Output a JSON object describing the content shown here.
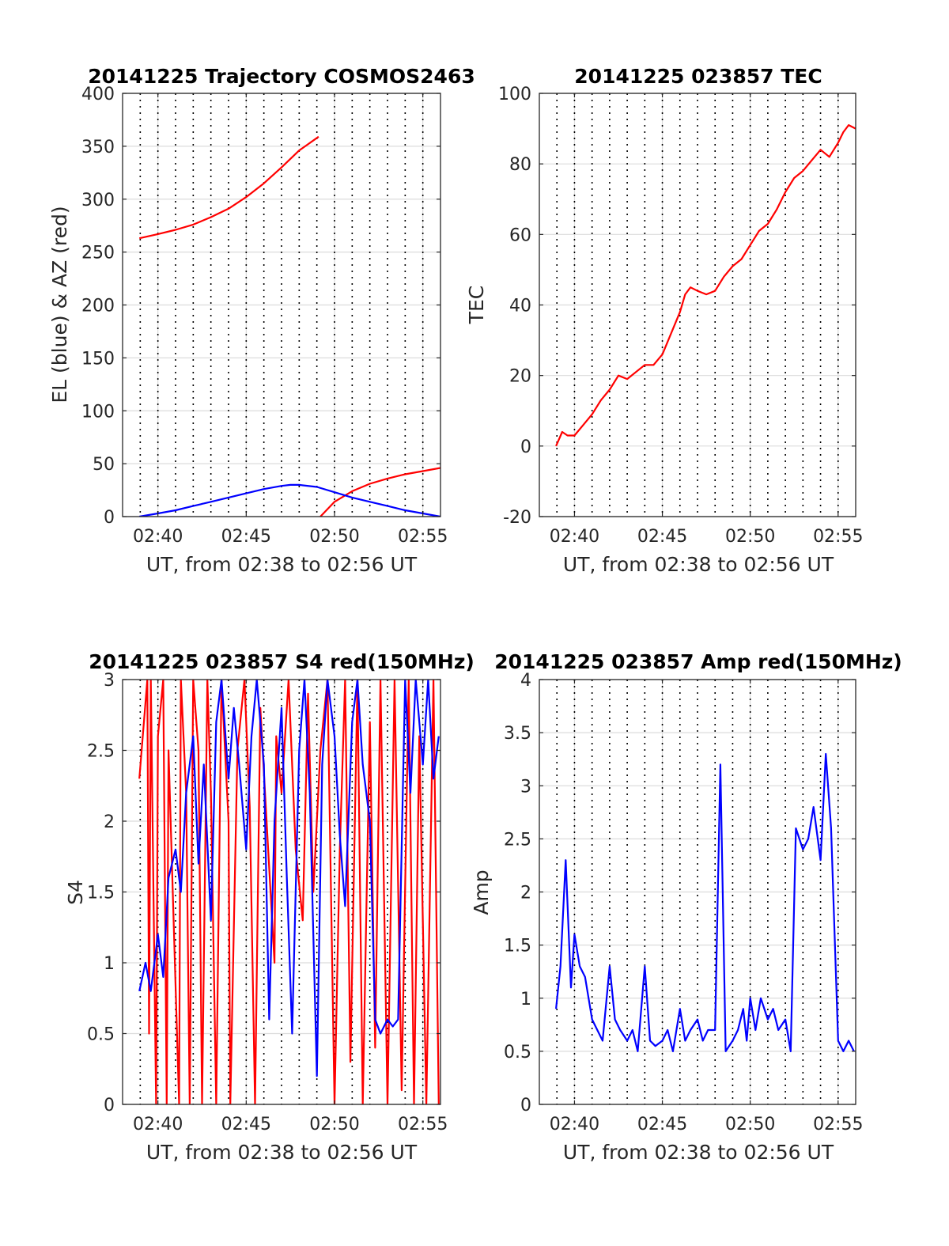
{
  "figure": {
    "background": "#ffffff"
  },
  "chart_data": [
    {
      "id": "trajectory",
      "type": "line",
      "title": "20141225 Trajectory COSMOS2463",
      "xlabel": "UT, from 02:38 to 02:56 UT",
      "ylabel": "EL (blue) & AZ (red)",
      "x_unit": "minutes after 02:38 UT",
      "xlim": [
        0,
        18
      ],
      "ylim": [
        0,
        400
      ],
      "yticks": [
        0,
        50,
        100,
        150,
        200,
        250,
        300,
        350,
        400
      ],
      "ytick_labels": [
        "0",
        "50",
        "100",
        "150",
        "200",
        "250",
        "300",
        "350",
        "400"
      ],
      "xticks": [
        2,
        7,
        12,
        17
      ],
      "xtick_labels": [
        "02:40",
        "02:45",
        "02:50",
        "02:55"
      ],
      "grid": true,
      "series": [
        {
          "color": "#ff0000",
          "x": [
            0.95,
            2,
            3,
            4,
            5,
            6,
            7,
            8,
            9,
            10,
            11.1,
            11.1,
            11.2,
            12,
            13,
            14,
            15,
            16,
            17,
            18
          ],
          "y": [
            263,
            267,
            271,
            276,
            283,
            291,
            302,
            315,
            330,
            346,
            359,
            null,
            0,
            14,
            24,
            31,
            36,
            40,
            43,
            46
          ]
        },
        {
          "color": "#0000ff",
          "x": [
            0.95,
            2,
            3,
            4,
            5,
            6,
            7,
            8,
            9,
            9.5,
            10,
            11,
            12,
            13,
            14,
            15,
            16,
            17,
            18
          ],
          "y": [
            0,
            3,
            6,
            10,
            14,
            18,
            22,
            26,
            29,
            30,
            30,
            28,
            23,
            18,
            14,
            10,
            6,
            3,
            0
          ]
        }
      ]
    },
    {
      "id": "tec",
      "type": "line",
      "title": "20141225 023857 TEC",
      "xlabel": "UT, from 02:38 to 02:56 UT",
      "ylabel": "TEC",
      "x_unit": "minutes after 02:38 UT",
      "xlim": [
        0,
        18
      ],
      "ylim": [
        -20,
        100
      ],
      "yticks": [
        -20,
        0,
        20,
        40,
        60,
        80,
        100
      ],
      "ytick_labels": [
        "-20",
        "0",
        "20",
        "40",
        "60",
        "80",
        "100"
      ],
      "xticks": [
        2,
        7,
        12,
        17
      ],
      "xtick_labels": [
        "02:40",
        "02:45",
        "02:50",
        "02:55"
      ],
      "grid": true,
      "series": [
        {
          "color": "#ff0000",
          "x": [
            0.95,
            1.3,
            1.6,
            2,
            2.5,
            3,
            3.5,
            4,
            4.5,
            5,
            5.5,
            6,
            6.5,
            7,
            7.5,
            8,
            8.3,
            8.6,
            9,
            9.5,
            10,
            10.5,
            11,
            11.5,
            12,
            12.5,
            13,
            13.5,
            14,
            14.5,
            15,
            15.5,
            16,
            16.5,
            17,
            17.3,
            17.6,
            18
          ],
          "y": [
            0,
            4,
            3,
            3,
            6,
            9,
            13,
            16,
            20,
            19,
            21,
            23,
            23,
            26,
            32,
            38,
            43,
            45,
            44,
            43,
            44,
            48,
            51,
            53,
            57,
            61,
            63,
            67,
            72,
            76,
            78,
            81,
            84,
            82,
            86,
            89,
            91,
            90
          ]
        }
      ]
    },
    {
      "id": "s4",
      "type": "line",
      "title": "20141225 023857 S4 red(150MHz)",
      "xlabel": "UT, from 02:38 to 02:56 UT",
      "ylabel": "S4",
      "x_unit": "minutes after 02:38 UT",
      "xlim": [
        0,
        18
      ],
      "ylim": [
        0,
        3
      ],
      "yticks": [
        0,
        0.5,
        1,
        1.5,
        2,
        2.5,
        3
      ],
      "ytick_labels": [
        "0",
        "0.5",
        "1",
        "1.5",
        "2",
        "2.5",
        "3"
      ],
      "xticks": [
        2,
        7,
        12,
        17
      ],
      "xtick_labels": [
        "02:40",
        "02:45",
        "02:50",
        "02:55"
      ],
      "grid": true,
      "series": [
        {
          "color": "#ff0000",
          "x": [
            0.95,
            1.4,
            1.5,
            1.6,
            1.9,
            2.0,
            2.3,
            2.5,
            2.6,
            3.2,
            3.3,
            3.6,
            3.8,
            4.0,
            4.3,
            4.5,
            4.8,
            5.0,
            5.3,
            5.6,
            6.0,
            6.1,
            6.5,
            6.9,
            7.2,
            7.5,
            7.8,
            8.2,
            8.6,
            8.7,
            9.0,
            9.4,
            9.8,
            10.2,
            10.5,
            10.8,
            11.2,
            11.6,
            12.0,
            12.3,
            12.6,
            12.9,
            13.3,
            13.6,
            14.0,
            14.3,
            14.6,
            15.0,
            15.4,
            15.8,
            16.2,
            16.5,
            16.8,
            17.2,
            17.6,
            17.9
          ],
          "y": [
            2.3,
            3,
            0.5,
            3,
            0,
            2.6,
            3,
            0,
            2.5,
            0,
            3,
            2.2,
            0,
            3,
            2.5,
            0,
            3,
            2.2,
            0,
            3,
            2.0,
            0,
            2.5,
            3,
            2.1,
            0,
            2.8,
            1.9,
            1.0,
            2.6,
            2.2,
            3,
            1.8,
            1.3,
            2.9,
            1.5,
            2.5,
            3,
            0,
            1.8,
            3,
            0.3,
            3,
            0,
            2.7,
            0.4,
            3,
            0,
            3,
            0.1,
            3,
            0,
            2.6,
            0,
            3,
            0
          ]
        },
        {
          "color": "#0000ff",
          "x": [
            0.95,
            1.3,
            1.6,
            2.0,
            2.3,
            2.6,
            3.0,
            3.3,
            3.6,
            4.0,
            4.3,
            4.6,
            5.0,
            5.3,
            5.6,
            6.0,
            6.3,
            6.6,
            7.0,
            7.3,
            7.6,
            8.0,
            8.3,
            8.6,
            9.0,
            9.3,
            9.6,
            10.0,
            10.3,
            10.6,
            11.0,
            11.3,
            11.6,
            12.0,
            12.3,
            12.6,
            13.0,
            13.3,
            13.6,
            14.0,
            14.3,
            14.6,
            15.0,
            15.3,
            15.6,
            16.0,
            16.3,
            16.6,
            17.0,
            17.3,
            17.6,
            17.9
          ],
          "y": [
            0.8,
            1.0,
            0.8,
            1.2,
            0.9,
            1.6,
            1.8,
            1.5,
            2.2,
            2.6,
            1.7,
            2.4,
            1.3,
            2.7,
            3.0,
            2.3,
            2.8,
            2.4,
            1.8,
            2.6,
            3.0,
            2.4,
            0.6,
            2.0,
            2.8,
            1.6,
            0.5,
            2.5,
            3.0,
            2.2,
            0.2,
            2.4,
            3.0,
            2.6,
            1.9,
            1.4,
            2.7,
            3.0,
            2.4,
            2.0,
            0.6,
            0.5,
            0.6,
            0.55,
            0.6,
            3.0,
            2.2,
            3.0,
            2.4,
            3.0,
            2.3,
            2.6
          ]
        }
      ]
    },
    {
      "id": "amp",
      "type": "line",
      "title": "20141225 023857 Amp red(150MHz)",
      "xlabel": "UT, from 02:38 to 02:56 UT",
      "ylabel": "Amp",
      "x_unit": "minutes after 02:38 UT",
      "xlim": [
        0,
        18
      ],
      "ylim": [
        0,
        4
      ],
      "yticks": [
        0,
        0.5,
        1,
        1.5,
        2,
        2.5,
        3,
        3.5,
        4
      ],
      "ytick_labels": [
        "0",
        "0.5",
        "1",
        "1.5",
        "2",
        "2.5",
        "3",
        "3.5",
        "4"
      ],
      "xticks": [
        2,
        7,
        12,
        17
      ],
      "xtick_labels": [
        "02:40",
        "02:45",
        "02:50",
        "02:55"
      ],
      "grid": true,
      "series": [
        {
          "color": "#0000ff",
          "x": [
            0.95,
            1.2,
            1.5,
            1.8,
            2.0,
            2.3,
            2.6,
            3.0,
            3.3,
            3.6,
            4.0,
            4.3,
            4.6,
            5.0,
            5.3,
            5.6,
            6.0,
            6.3,
            6.6,
            7.0,
            7.3,
            7.6,
            8.0,
            8.3,
            8.6,
            9.0,
            9.3,
            9.6,
            10.0,
            10.3,
            10.6,
            11.0,
            11.3,
            11.6,
            11.8,
            12.0,
            12.3,
            12.6,
            13.0,
            13.3,
            13.6,
            14.0,
            14.3,
            14.6,
            15.0,
            15.3,
            15.6,
            16.0,
            16.3,
            16.6,
            17.0,
            17.3,
            17.6,
            17.9
          ],
          "y": [
            0.9,
            1.3,
            2.3,
            1.1,
            1.6,
            1.3,
            1.2,
            0.8,
            0.7,
            0.6,
            1.3,
            0.8,
            0.7,
            0.6,
            0.7,
            0.5,
            1.3,
            0.6,
            0.55,
            0.6,
            0.7,
            0.5,
            0.9,
            0.6,
            0.7,
            0.8,
            0.6,
            0.7,
            0.7,
            3.2,
            0.5,
            0.6,
            0.7,
            0.9,
            0.6,
            1.0,
            0.7,
            1.0,
            0.8,
            0.9,
            0.7,
            0.8,
            0.5,
            2.6,
            2.4,
            2.5,
            2.8,
            2.3,
            3.3,
            2.6,
            0.6,
            0.5,
            0.6,
            0.5
          ]
        }
      ]
    }
  ]
}
